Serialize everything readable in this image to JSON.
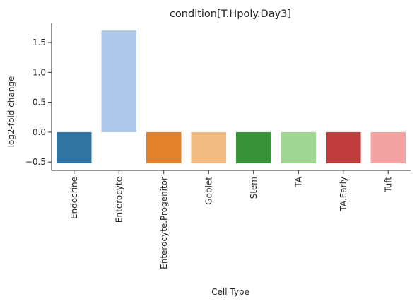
{
  "chart_data": {
    "type": "bar",
    "title": "condition[T.Hpoly.Day3]",
    "xlabel": "Cell Type",
    "ylabel": "log2-fold change",
    "categories": [
      "Endocrine",
      "Enterocyte",
      "Enterocyte.Progenitor",
      "Goblet",
      "Stem",
      "TA",
      "TA.Early",
      "Tuft"
    ],
    "values": [
      -0.52,
      1.7,
      -0.52,
      -0.52,
      -0.52,
      -0.52,
      -0.52,
      -0.52
    ],
    "colors": [
      "#3274a1",
      "#aec7e8",
      "#e1812c",
      "#f1bb82",
      "#3a923a",
      "#a0d593",
      "#c03d3e",
      "#f4a3a3"
    ],
    "ylim": [
      -0.64,
      1.82
    ],
    "yticks": [
      -0.5,
      0.0,
      0.5,
      1.0,
      1.5
    ],
    "ytick_labels": [
      "−0.5",
      "0.0",
      "0.5",
      "1.0",
      "1.5"
    ],
    "grid": false,
    "legend": "none"
  }
}
